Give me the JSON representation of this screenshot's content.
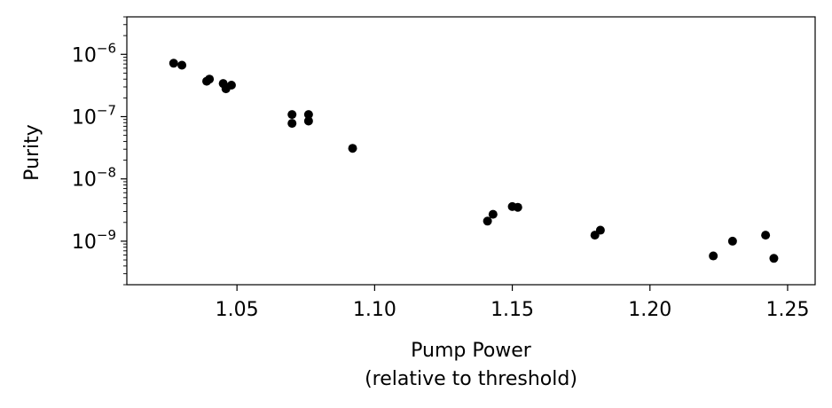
{
  "chart_data": {
    "type": "scatter",
    "title": "",
    "xlabel_line1": "Pump Power",
    "xlabel_line2": "(relative to threshold)",
    "ylabel": "Purity",
    "xlim": [
      1.01,
      1.26
    ],
    "ylim": [
      2e-10,
      4e-06
    ],
    "yscale": "log",
    "grid": false,
    "xticks": [
      1.05,
      1.1,
      1.15,
      1.2,
      1.25
    ],
    "xtick_labels": [
      "1.05",
      "1.10",
      "1.15",
      "1.20",
      "1.25"
    ],
    "yticks": [
      {
        "exp": -9,
        "base": "10",
        "sup": "−9"
      },
      {
        "exp": -8,
        "base": "10",
        "sup": "−8"
      },
      {
        "exp": -7,
        "base": "10",
        "sup": "−7"
      },
      {
        "exp": -6,
        "base": "10",
        "sup": "−6"
      }
    ],
    "marker_color": "#000000",
    "points": [
      {
        "x": 1.027,
        "y": 7.2e-07
      },
      {
        "x": 1.03,
        "y": 6.7e-07
      },
      {
        "x": 1.039,
        "y": 3.7e-07
      },
      {
        "x": 1.04,
        "y": 4e-07
      },
      {
        "x": 1.045,
        "y": 3.4e-07
      },
      {
        "x": 1.046,
        "y": 2.8e-07
      },
      {
        "x": 1.048,
        "y": 3.2e-07
      },
      {
        "x": 1.07,
        "y": 1.08e-07
      },
      {
        "x": 1.07,
        "y": 7.8e-08
      },
      {
        "x": 1.076,
        "y": 1.08e-07
      },
      {
        "x": 1.076,
        "y": 8.5e-08
      },
      {
        "x": 1.092,
        "y": 3.1e-08
      },
      {
        "x": 1.141,
        "y": 2.1e-09
      },
      {
        "x": 1.143,
        "y": 2.7e-09
      },
      {
        "x": 1.15,
        "y": 3.6e-09
      },
      {
        "x": 1.152,
        "y": 3.5e-09
      },
      {
        "x": 1.18,
        "y": 1.25e-09
      },
      {
        "x": 1.182,
        "y": 1.5e-09
      },
      {
        "x": 1.223,
        "y": 5.8e-10
      },
      {
        "x": 1.23,
        "y": 1e-09
      },
      {
        "x": 1.242,
        "y": 1.25e-09
      },
      {
        "x": 1.245,
        "y": 5.3e-10
      }
    ]
  }
}
